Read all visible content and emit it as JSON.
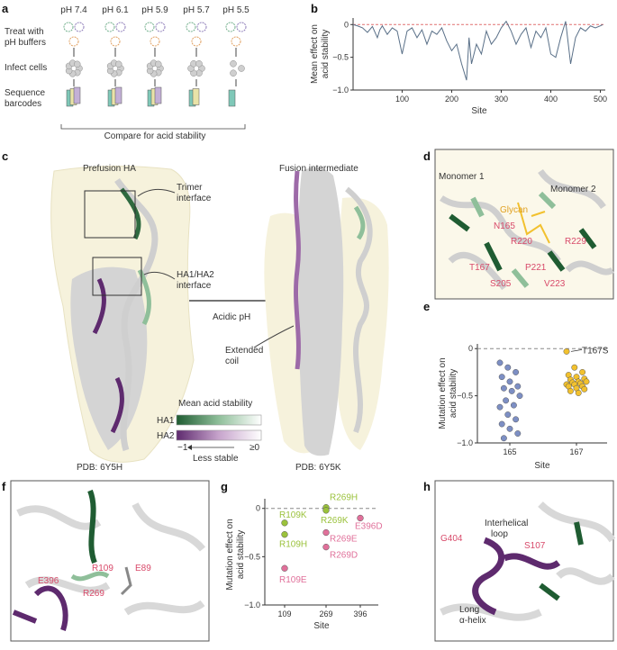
{
  "panel_labels": {
    "a": "a",
    "b": "b",
    "c": "c",
    "d": "d",
    "e": "e",
    "f": "f",
    "g": "g",
    "h": "h"
  },
  "panel_a": {
    "ph_values": [
      "pH 7.4",
      "pH 6.1",
      "pH 5.9",
      "pH 5.7",
      "pH 5.5"
    ],
    "steps": [
      "Treat with",
      "pH buffers",
      "Infect cells",
      "Sequence",
      "barcodes"
    ],
    "compare": "Compare for acid stability"
  },
  "panel_c": {
    "prefusion_title": "Prefusion HA",
    "fusion_title": "Fusion intermediate",
    "trimer_interface": [
      "Trimer",
      "interface"
    ],
    "ha1ha2_interface": [
      "HA1/HA2",
      "interface"
    ],
    "acidic_ph": "Acidic pH",
    "extended_coil": [
      "Extended",
      "coil"
    ],
    "legend_title": "Mean acid stability",
    "legend_ha1": "HA1",
    "legend_ha2": "HA2",
    "legend_min": "−1",
    "legend_max": "≥0",
    "legend_arrow": "Less stable",
    "pdb_left": "PDB: 6Y5H",
    "pdb_right": "PDB: 6Y5K"
  },
  "panel_d": {
    "monomer1": "Monomer 1",
    "monomer2": "Monomer 2",
    "glycan": "Glycan",
    "residues": [
      "N165",
      "R220",
      "R229",
      "T167",
      "P221",
      "S205",
      "V223"
    ]
  },
  "panel_f": {
    "residues": [
      "R109",
      "E89",
      "E396",
      "R269"
    ]
  },
  "panel_h": {
    "interhelical": [
      "Interhelical",
      "loop"
    ],
    "long_helix": [
      "Long",
      "α-helix"
    ],
    "residues": [
      "G404",
      "S107"
    ]
  },
  "colors": {
    "ha1_dark": "#1f5c32",
    "ha2_dark": "#5e2a6e",
    "line": "#5a7088",
    "yellow": "#f2c12e",
    "blue": "#7d8fc4",
    "green": "#9bc23c",
    "pink": "#e0709a",
    "bg_shade": "#f6f2dc",
    "grey": "#d0d0d0"
  },
  "chart_data": [
    {
      "type": "line",
      "title": "",
      "xlabel": "Site",
      "ylabel": "Mean effect on acid stability",
      "xlim": [
        1,
        510
      ],
      "ylim": [
        -1.0,
        0.1
      ],
      "xticks": [
        100,
        200,
        300,
        400,
        500
      ],
      "yticks": [
        0,
        -0.5,
        -1.0
      ],
      "ytick_labels": [
        "0",
        "−0.5",
        "−1.0"
      ],
      "reference_line": 0,
      "series": [
        {
          "name": "Mean effect",
          "x": [
            1,
            10,
            20,
            30,
            40,
            50,
            55,
            60,
            70,
            80,
            90,
            100,
            110,
            120,
            130,
            140,
            150,
            160,
            170,
            180,
            190,
            200,
            210,
            220,
            230,
            235,
            240,
            250,
            260,
            270,
            280,
            290,
            300,
            310,
            320,
            330,
            340,
            350,
            360,
            370,
            380,
            390,
            400,
            410,
            420,
            430,
            440,
            450,
            460,
            470,
            480,
            490,
            500,
            505
          ],
          "values": [
            0,
            -0.02,
            -0.05,
            -0.12,
            -0.03,
            -0.2,
            -0.08,
            -0.02,
            -0.15,
            -0.05,
            -0.1,
            -0.45,
            -0.1,
            -0.05,
            -0.2,
            -0.08,
            -0.3,
            -0.1,
            -0.15,
            -0.05,
            -0.25,
            -0.4,
            -0.3,
            -0.6,
            -0.85,
            -0.2,
            -0.6,
            -0.3,
            -0.45,
            -0.1,
            -0.3,
            -0.2,
            -0.05,
            0.05,
            -0.1,
            -0.3,
            -0.15,
            -0.05,
            -0.35,
            -0.1,
            -0.2,
            -0.05,
            -0.45,
            -0.5,
            -0.2,
            0.05,
            -0.6,
            -0.2,
            -0.05,
            -0.1,
            -0.02,
            -0.05,
            -0.02,
            0
          ]
        }
      ]
    },
    {
      "type": "scatter",
      "xlabel": "Site",
      "ylabel": "Mutation effect on acid stability",
      "ylim": [
        -1.0,
        0.05
      ],
      "xticks": [
        "165",
        "167"
      ],
      "yticks": [
        0,
        -0.5,
        -1.0
      ],
      "ytick_labels": [
        "0",
        "−0.5",
        "−1.0"
      ],
      "annotation": "T167S",
      "series": [
        {
          "name": "165",
          "color": "blue",
          "values": [
            -0.15,
            -0.2,
            -0.25,
            -0.3,
            -0.35,
            -0.4,
            -0.42,
            -0.45,
            -0.5,
            -0.55,
            -0.6,
            -0.62,
            -0.7,
            -0.75,
            -0.8,
            -0.85,
            -0.9,
            -0.95
          ]
        },
        {
          "name": "167",
          "color": "yellow",
          "values": [
            -0.03,
            -0.2,
            -0.25,
            -0.28,
            -0.3,
            -0.32,
            -0.33,
            -0.35,
            -0.35,
            -0.36,
            -0.37,
            -0.38,
            -0.38,
            -0.4,
            -0.4,
            -0.42,
            -0.43,
            -0.45,
            -0.47
          ]
        }
      ]
    },
    {
      "type": "scatter",
      "xlabel": "Site",
      "ylabel": "Mutation effect on acid stability",
      "ylim": [
        -1.0,
        0.1
      ],
      "categories": [
        "109",
        "269",
        "396"
      ],
      "yticks": [
        0,
        -0.5,
        -1.0
      ],
      "ytick_labels": [
        "0",
        "−0.5",
        "−1.0"
      ],
      "points": [
        {
          "label": "R109K",
          "site": "109",
          "value": -0.15,
          "color": "green"
        },
        {
          "label": "R109H",
          "site": "109",
          "value": -0.27,
          "color": "green"
        },
        {
          "label": "R109E",
          "site": "109",
          "value": -0.62,
          "color": "pink"
        },
        {
          "label": "R269H",
          "site": "269",
          "value": 0.01,
          "color": "green"
        },
        {
          "label": "R269K",
          "site": "269",
          "value": -0.02,
          "color": "green"
        },
        {
          "label": "R269E",
          "site": "269",
          "value": -0.25,
          "color": "pink"
        },
        {
          "label": "R269D",
          "site": "269",
          "value": -0.4,
          "color": "pink"
        },
        {
          "label": "E396D",
          "site": "396",
          "value": -0.1,
          "color": "pink"
        }
      ]
    }
  ]
}
